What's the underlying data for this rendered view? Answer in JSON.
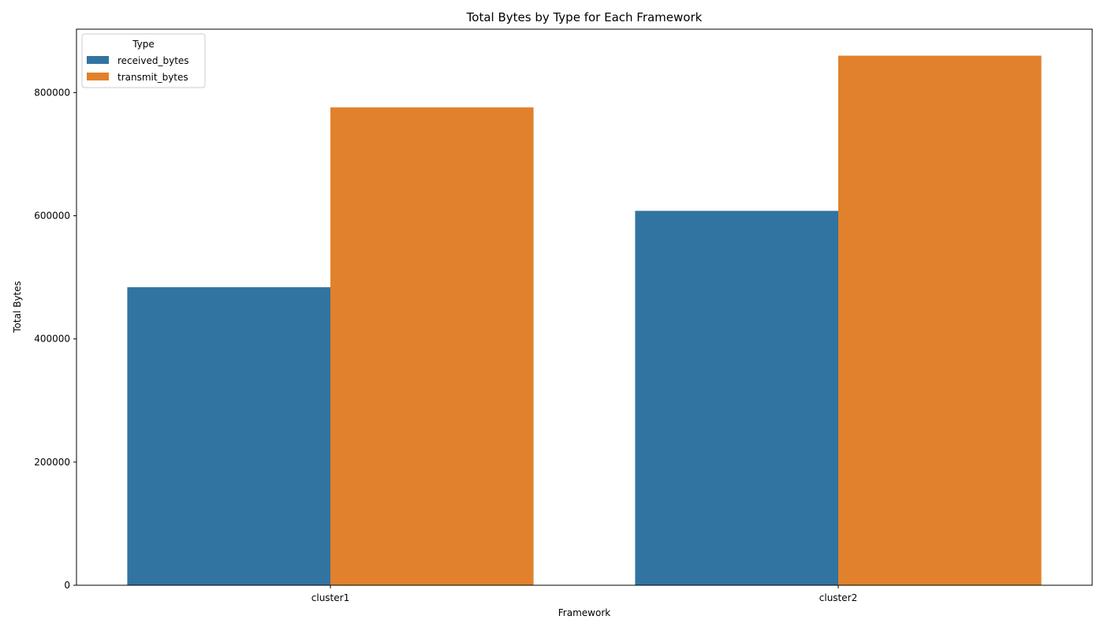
{
  "chart_data": {
    "type": "bar",
    "title": "Total Bytes by Type for Each Framework",
    "xlabel": "Framework",
    "ylabel": "Total Bytes",
    "categories": [
      "cluster1",
      "cluster2"
    ],
    "series": [
      {
        "name": "received_bytes",
        "values": [
          484000,
          608000
        ],
        "color": "#3274a1"
      },
      {
        "name": "transmit_bytes",
        "values": [
          776000,
          860000
        ],
        "color": "#e1812c"
      }
    ],
    "ylim": [
      0,
      903000
    ],
    "yticks": [
      0,
      200000,
      400000,
      600000,
      800000
    ],
    "ytick_labels": [
      "0",
      "200000",
      "400000",
      "600000",
      "800000"
    ],
    "legend": {
      "title": "Type",
      "position": "top-left"
    },
    "grid": false
  }
}
